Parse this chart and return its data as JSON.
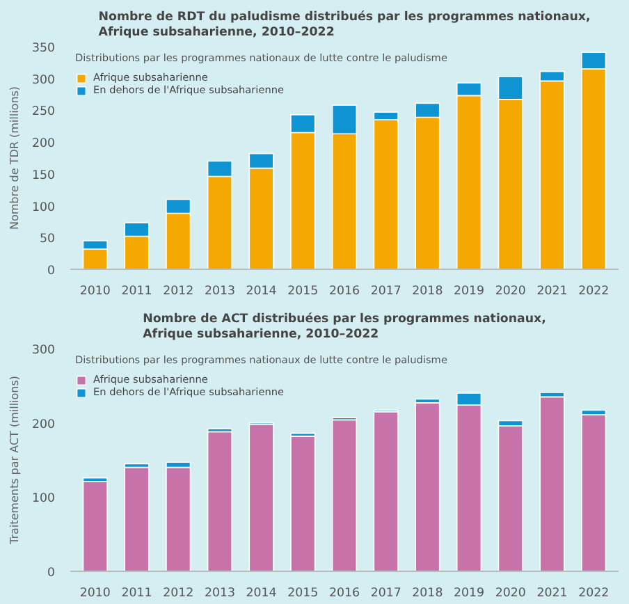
{
  "chart_data": [
    {
      "type": "bar",
      "stacked": true,
      "title": "Nombre de RDT du paludisme distribués par les programmes nationaux,\nAfrique subsaharienne, 2010–2022",
      "ylabel": "Nombre de TDR (millions)",
      "legend_title": "Distributions par les programmes nationaux de lutte contre le paludisme",
      "legend": "top left",
      "grid": false,
      "categories": [
        "2010",
        "2011",
        "2012",
        "2013",
        "2014",
        "2015",
        "2016",
        "2017",
        "2018",
        "2019",
        "2020",
        "2021",
        "2022"
      ],
      "ylim": [
        0,
        350
      ],
      "yticks": [
        0,
        50,
        100,
        150,
        200,
        250,
        300,
        350
      ],
      "series": [
        {
          "name": "Afrique subsaharienne",
          "color": "#f5a800",
          "values": [
            32,
            52,
            88,
            146,
            159,
            215,
            213,
            235,
            239,
            273,
            267,
            296,
            315
          ]
        },
        {
          "name": "En dehors de l'Afrique subsaharienne",
          "color": "#0e94d2",
          "values": [
            13,
            21,
            22,
            24,
            23,
            28,
            45,
            12,
            22,
            20,
            36,
            15,
            26
          ]
        }
      ]
    },
    {
      "type": "bar",
      "stacked": true,
      "title": "Nombre de ACT distribuées par les programmes nationaux,\nAfrique subsaharienne, 2010–2022",
      "ylabel": "Traitements par ACT (millions)",
      "legend_title": "Distributions par les programmes nationaux de lutte contre le paludisme",
      "legend": "top left",
      "grid": false,
      "categories": [
        "2010",
        "2011",
        "2012",
        "2013",
        "2014",
        "2015",
        "2016",
        "2017",
        "2018",
        "2019",
        "2020",
        "2021",
        "2022"
      ],
      "ylim": [
        0,
        300
      ],
      "yticks": [
        0,
        100,
        200,
        300
      ],
      "series": [
        {
          "name": "Afrique subsaharienne",
          "color": "#c872aa",
          "values": [
            121,
            140,
            140,
            188,
            198,
            182,
            204,
            215,
            227,
            224,
            196,
            235,
            211
          ]
        },
        {
          "name": "En dehors de l'Afrique subsaharienne",
          "color": "#0e94d2",
          "values": [
            5,
            5,
            7,
            4,
            2,
            4,
            3,
            2,
            5,
            16,
            7,
            6,
            6
          ]
        }
      ]
    }
  ]
}
